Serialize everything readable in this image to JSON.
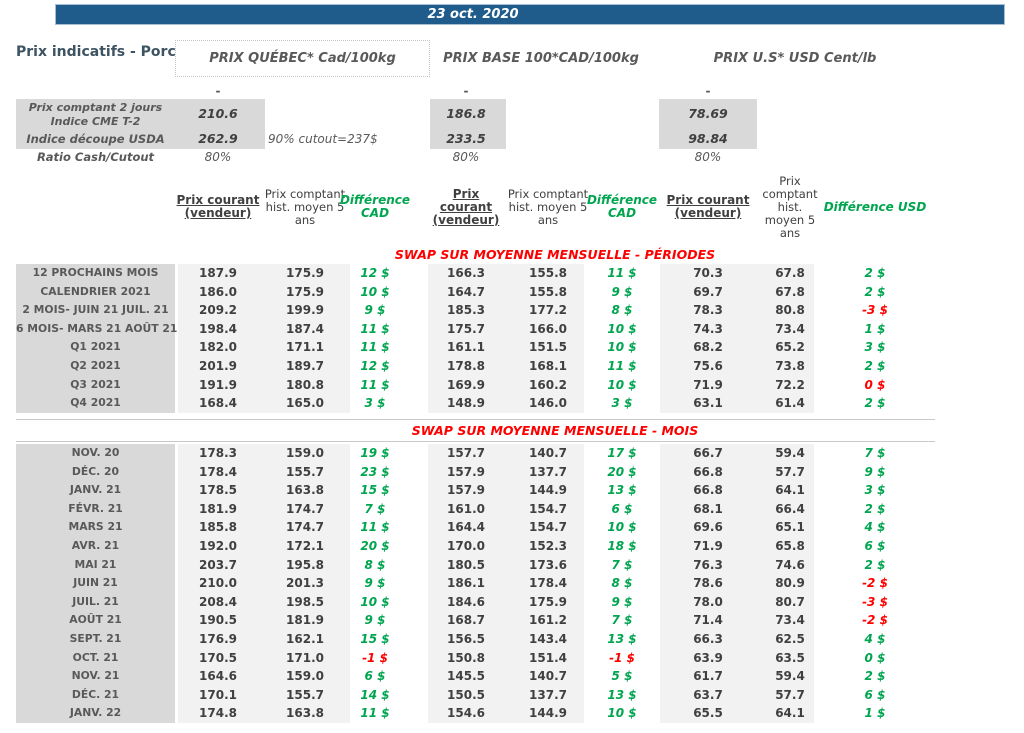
{
  "banner": {
    "date": "23 oct. 2020",
    "bg_color": "#1F5C8C"
  },
  "report": {
    "title": "Prix indicatifs - Porc"
  },
  "price_groups": [
    {
      "title": "PRIX QUÉBEC* Cad/100kg",
      "boxed": true
    },
    {
      "title": "PRIX BASE 100*CAD/100kg",
      "boxed": false
    },
    {
      "title": "PRIX U.S* USD Cent/lb",
      "boxed": false
    }
  ],
  "spot": {
    "dash": "-",
    "row_a": {
      "label_line1": "Prix comptant 2 jours",
      "label_line2": "Indice CME T-2",
      "values": [
        "210.6",
        "186.8",
        "78.69"
      ]
    },
    "row_b": {
      "label": "Indice découpe USDA",
      "values": [
        "262.9",
        "233.5",
        "98.84"
      ],
      "note": "90% cutout=237$"
    },
    "row_c": {
      "label": "Ratio Cash/Cutout",
      "values": [
        "80%",
        "80%",
        "80%"
      ]
    }
  },
  "table_headers": [
    {
      "current": "Prix courant (vendeur)",
      "hist": "Prix comptant hist. moyen 5 ans",
      "diff": "Différence CAD"
    },
    {
      "current": "Prix courant (vendeur)",
      "hist": "Prix comptant hist. moyen 5 ans",
      "diff": "Différence CAD"
    },
    {
      "current": "Prix courant (vendeur)",
      "hist": "Prix comptant hist. moyen 5 ans",
      "diff": "Différence USD"
    }
  ],
  "sections": [
    {
      "header": "SWAP SUR MOYENNE MENSUELLE - PÉRIODES",
      "rows": [
        {
          "label": "12 PROCHAINS MOIS",
          "cells": [
            "187.9",
            "175.9",
            "12 $",
            "166.3",
            "155.8",
            "11 $",
            "70.3",
            "67.8",
            "2 $"
          ],
          "diff_colors": [
            "green",
            "green",
            "green"
          ]
        },
        {
          "label": "CALENDRIER 2021",
          "cells": [
            "186.0",
            "175.9",
            "10 $",
            "164.7",
            "155.8",
            "9 $",
            "69.7",
            "67.8",
            "2 $"
          ],
          "diff_colors": [
            "green",
            "green",
            "green"
          ]
        },
        {
          "label": "2 MOIS- JUIN 21 JUIL. 21",
          "cells": [
            "209.2",
            "199.9",
            "9 $",
            "185.3",
            "177.2",
            "8 $",
            "78.3",
            "80.8",
            "-3 $"
          ],
          "diff_colors": [
            "green",
            "green",
            "red"
          ]
        },
        {
          "label": "6 MOIS- MARS 21 AOÛT 21",
          "cells": [
            "198.4",
            "187.4",
            "11 $",
            "175.7",
            "166.0",
            "10 $",
            "74.3",
            "73.4",
            "1 $"
          ],
          "diff_colors": [
            "green",
            "green",
            "green"
          ]
        },
        {
          "label": "Q1 2021",
          "cells": [
            "182.0",
            "171.1",
            "11 $",
            "161.1",
            "151.5",
            "10 $",
            "68.2",
            "65.2",
            "3 $"
          ],
          "diff_colors": [
            "green",
            "green",
            "green"
          ]
        },
        {
          "label": "Q2 2021",
          "cells": [
            "201.9",
            "189.7",
            "12 $",
            "178.8",
            "168.1",
            "11 $",
            "75.6",
            "73.8",
            "2 $"
          ],
          "diff_colors": [
            "green",
            "green",
            "green"
          ]
        },
        {
          "label": "Q3 2021",
          "cells": [
            "191.9",
            "180.8",
            "11 $",
            "169.9",
            "160.2",
            "10 $",
            "71.9",
            "72.2",
            "0 $"
          ],
          "diff_colors": [
            "green",
            "green",
            "red"
          ]
        },
        {
          "label": "Q4 2021",
          "cells": [
            "168.4",
            "165.0",
            "3 $",
            "148.9",
            "146.0",
            "3 $",
            "63.1",
            "61.4",
            "2 $"
          ],
          "diff_colors": [
            "green",
            "green",
            "green"
          ]
        }
      ]
    },
    {
      "header": "SWAP SUR MOYENNE MENSUELLE - MOIS",
      "rows": [
        {
          "label": "NOV. 20",
          "cells": [
            "178.3",
            "159.0",
            "19 $",
            "157.7",
            "140.7",
            "17 $",
            "66.7",
            "59.4",
            "7 $"
          ],
          "diff_colors": [
            "green",
            "green",
            "green"
          ]
        },
        {
          "label": "DÉC. 20",
          "cells": [
            "178.4",
            "155.7",
            "23 $",
            "157.9",
            "137.7",
            "20 $",
            "66.8",
            "57.7",
            "9 $"
          ],
          "diff_colors": [
            "green",
            "green",
            "green"
          ]
        },
        {
          "label": "JANV. 21",
          "cells": [
            "178.5",
            "163.8",
            "15 $",
            "157.9",
            "144.9",
            "13 $",
            "66.8",
            "64.1",
            "3 $"
          ],
          "diff_colors": [
            "green",
            "green",
            "green"
          ]
        },
        {
          "label": "FÉVR. 21",
          "cells": [
            "181.9",
            "174.7",
            "7 $",
            "161.0",
            "154.7",
            "6 $",
            "68.1",
            "66.4",
            "2 $"
          ],
          "diff_colors": [
            "green",
            "green",
            "green"
          ]
        },
        {
          "label": "MARS 21",
          "cells": [
            "185.8",
            "174.7",
            "11 $",
            "164.4",
            "154.7",
            "10 $",
            "69.6",
            "65.1",
            "4 $"
          ],
          "diff_colors": [
            "green",
            "green",
            "green"
          ]
        },
        {
          "label": "AVR. 21",
          "cells": [
            "192.0",
            "172.1",
            "20 $",
            "170.0",
            "152.3",
            "18 $",
            "71.9",
            "65.8",
            "6 $"
          ],
          "diff_colors": [
            "green",
            "green",
            "green"
          ]
        },
        {
          "label": "MAI 21",
          "cells": [
            "203.7",
            "195.8",
            "8 $",
            "180.5",
            "173.6",
            "7 $",
            "76.3",
            "74.6",
            "2 $"
          ],
          "diff_colors": [
            "green",
            "green",
            "green"
          ]
        },
        {
          "label": "JUIN 21",
          "cells": [
            "210.0",
            "201.3",
            "9 $",
            "186.1",
            "178.4",
            "8 $",
            "78.6",
            "80.9",
            "-2 $"
          ],
          "diff_colors": [
            "green",
            "green",
            "red"
          ]
        },
        {
          "label": "JUIL. 21",
          "cells": [
            "208.4",
            "198.5",
            "10 $",
            "184.6",
            "175.9",
            "9 $",
            "78.0",
            "80.7",
            "-3 $"
          ],
          "diff_colors": [
            "green",
            "green",
            "red"
          ]
        },
        {
          "label": "AOÛT 21",
          "cells": [
            "190.5",
            "181.9",
            "9 $",
            "168.7",
            "161.2",
            "7 $",
            "71.4",
            "73.4",
            "-2 $"
          ],
          "diff_colors": [
            "green",
            "green",
            "red"
          ]
        },
        {
          "label": "SEPT. 21",
          "cells": [
            "176.9",
            "162.1",
            "15 $",
            "156.5",
            "143.4",
            "13 $",
            "66.3",
            "62.5",
            "4 $"
          ],
          "diff_colors": [
            "green",
            "green",
            "green"
          ]
        },
        {
          "label": "OCT. 21",
          "cells": [
            "170.5",
            "171.0",
            "-1 $",
            "150.8",
            "151.4",
            "-1 $",
            "63.9",
            "63.5",
            "0 $"
          ],
          "diff_colors": [
            "red",
            "red",
            "green"
          ]
        },
        {
          "label": "NOV. 21",
          "cells": [
            "164.6",
            "159.0",
            "6 $",
            "145.5",
            "140.7",
            "5 $",
            "61.7",
            "59.4",
            "2 $"
          ],
          "diff_colors": [
            "green",
            "green",
            "green"
          ]
        },
        {
          "label": "DÉC. 21",
          "cells": [
            "170.1",
            "155.7",
            "14 $",
            "150.5",
            "137.7",
            "13 $",
            "63.7",
            "57.7",
            "6 $"
          ],
          "diff_colors": [
            "green",
            "green",
            "green"
          ]
        },
        {
          "label": "JANV. 22",
          "cells": [
            "174.8",
            "163.8",
            "11 $",
            "154.6",
            "144.9",
            "10 $",
            "65.5",
            "64.1",
            "1 $"
          ],
          "diff_colors": [
            "green",
            "green",
            "green"
          ]
        }
      ]
    }
  ],
  "colors": {
    "banner_bg": "#1F5C8C",
    "positive_green": "#00A550",
    "negative_red": "#FF0000",
    "section_header_red": "#FF0000",
    "label_column_bg": "#D9D9D9",
    "value_band_bg": "#F2F2F2",
    "text_dark": "#404040",
    "text_gray": "#595959"
  }
}
